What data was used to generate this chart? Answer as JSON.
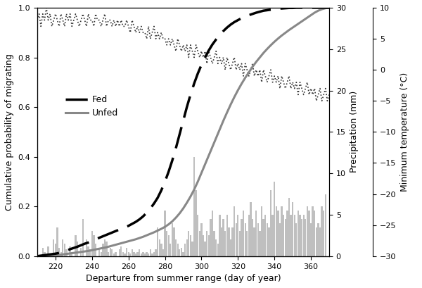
{
  "title": "",
  "xlabel": "Departure from summer range (day of year)",
  "ylabel_left": "Cumulative probability of migrating",
  "ylabel_mid": "Precipitation (mm)",
  "ylabel_right": "Minimum temperature (°C)",
  "xlim": [
    210,
    370
  ],
  "ylim_left": [
    0,
    1.0
  ],
  "ylim_mid": [
    0,
    30
  ],
  "ylim_right": [
    -30,
    10
  ],
  "xticks": [
    220,
    240,
    260,
    280,
    300,
    320,
    340,
    360
  ],
  "yticks_left": [
    0.0,
    0.2,
    0.4,
    0.6,
    0.8,
    1.0
  ],
  "yticks_mid": [
    0,
    5,
    10,
    15,
    20,
    25,
    30
  ],
  "yticks_right": [
    -30,
    -25,
    -20,
    -15,
    -10,
    -5,
    0,
    5,
    10
  ],
  "legend_labels": [
    "Fed",
    "Unfed"
  ],
  "background_color": "#ffffff",
  "fed_color": "#000000",
  "unfed_color": "#888888",
  "precip_color": "#aaaaaa",
  "temp_color": "#444444",
  "fed_x": [
    210,
    215,
    218,
    220,
    222,
    224,
    226,
    228,
    230,
    232,
    234,
    236,
    238,
    240,
    242,
    244,
    246,
    248,
    250,
    252,
    254,
    256,
    258,
    260,
    262,
    264,
    266,
    268,
    270,
    272,
    274,
    276,
    278,
    280,
    282,
    284,
    286,
    288,
    290,
    292,
    294,
    296,
    298,
    300,
    302,
    304,
    306,
    308,
    310,
    312,
    314,
    316,
    318,
    320,
    322,
    324,
    326,
    328,
    330,
    332,
    334,
    336,
    338,
    340,
    342,
    344,
    346,
    348,
    350,
    352,
    354,
    356,
    358,
    360,
    362,
    364,
    366,
    368,
    370
  ],
  "fed_y": [
    0.0,
    0.005,
    0.008,
    0.01,
    0.013,
    0.018,
    0.022,
    0.028,
    0.033,
    0.038,
    0.044,
    0.05,
    0.055,
    0.062,
    0.068,
    0.074,
    0.08,
    0.086,
    0.092,
    0.098,
    0.104,
    0.11,
    0.116,
    0.122,
    0.13,
    0.138,
    0.148,
    0.16,
    0.175,
    0.192,
    0.212,
    0.235,
    0.265,
    0.3,
    0.34,
    0.385,
    0.435,
    0.49,
    0.545,
    0.6,
    0.65,
    0.695,
    0.735,
    0.77,
    0.8,
    0.828,
    0.852,
    0.872,
    0.89,
    0.906,
    0.92,
    0.932,
    0.942,
    0.95,
    0.958,
    0.964,
    0.97,
    0.975,
    0.98,
    0.984,
    0.988,
    0.99,
    0.992,
    0.994,
    0.996,
    0.997,
    0.998,
    0.999,
    0.999,
    1.0,
    1.0,
    1.0,
    1.0,
    1.0,
    1.0,
    1.0,
    1.0,
    1.0,
    1.0
  ],
  "unfed_x": [
    210,
    215,
    218,
    220,
    222,
    224,
    226,
    228,
    230,
    232,
    234,
    236,
    238,
    240,
    242,
    244,
    246,
    248,
    250,
    252,
    254,
    256,
    258,
    260,
    262,
    264,
    266,
    268,
    270,
    272,
    274,
    276,
    278,
    280,
    282,
    284,
    286,
    288,
    290,
    292,
    294,
    296,
    298,
    300,
    302,
    304,
    306,
    308,
    310,
    312,
    314,
    316,
    318,
    320,
    322,
    324,
    326,
    328,
    330,
    332,
    334,
    336,
    338,
    340,
    342,
    344,
    346,
    348,
    350,
    352,
    354,
    356,
    358,
    360,
    362,
    364,
    366,
    368,
    370
  ],
  "unfed_y": [
    0.0,
    0.002,
    0.003,
    0.004,
    0.005,
    0.007,
    0.009,
    0.011,
    0.013,
    0.015,
    0.017,
    0.019,
    0.021,
    0.024,
    0.027,
    0.03,
    0.033,
    0.036,
    0.04,
    0.044,
    0.048,
    0.052,
    0.056,
    0.06,
    0.064,
    0.068,
    0.073,
    0.078,
    0.084,
    0.09,
    0.096,
    0.103,
    0.11,
    0.118,
    0.128,
    0.14,
    0.155,
    0.172,
    0.192,
    0.215,
    0.24,
    0.268,
    0.3,
    0.335,
    0.37,
    0.405,
    0.44,
    0.475,
    0.51,
    0.545,
    0.578,
    0.61,
    0.64,
    0.668,
    0.694,
    0.718,
    0.74,
    0.762,
    0.782,
    0.8,
    0.818,
    0.834,
    0.849,
    0.863,
    0.876,
    0.888,
    0.899,
    0.91,
    0.92,
    0.93,
    0.94,
    0.95,
    0.96,
    0.97,
    0.98,
    0.988,
    0.994,
    0.998,
    1.0
  ],
  "precip_days": [
    213,
    214,
    216,
    217,
    219,
    220,
    221,
    222,
    223,
    224,
    225,
    226,
    228,
    229,
    231,
    232,
    234,
    235,
    237,
    238,
    239,
    240,
    241,
    242,
    244,
    245,
    246,
    247,
    248,
    249,
    250,
    251,
    252,
    253,
    255,
    256,
    257,
    258,
    259,
    260,
    261,
    262,
    263,
    264,
    265,
    266,
    267,
    268,
    269,
    270,
    271,
    272,
    273,
    274,
    275,
    276,
    277,
    278,
    279,
    280,
    281,
    282,
    283,
    284,
    285,
    286,
    287,
    288,
    289,
    290,
    291,
    292,
    293,
    294,
    295,
    296,
    297,
    298,
    299,
    300,
    301,
    302,
    303,
    304,
    305,
    306,
    307,
    308,
    309,
    310,
    311,
    312,
    313,
    314,
    315,
    316,
    317,
    318,
    319,
    320,
    321,
    322,
    323,
    324,
    325,
    326,
    327,
    328,
    329,
    330,
    331,
    332,
    333,
    334,
    335,
    336,
    337,
    338,
    339,
    340,
    341,
    342,
    343,
    344,
    345,
    346,
    347,
    348,
    349,
    350,
    351,
    352,
    353,
    354,
    355,
    356,
    357,
    358,
    359,
    360,
    361,
    362,
    363,
    364,
    365,
    366,
    367,
    368
  ],
  "precip_heights": [
    1.0,
    0.5,
    1.2,
    0.3,
    2.0,
    1.5,
    3.5,
    1.0,
    0.5,
    2.0,
    1.5,
    0.8,
    1.2,
    0.5,
    2.5,
    1.8,
    1.0,
    4.5,
    2.0,
    1.2,
    0.8,
    3.0,
    2.5,
    1.5,
    1.0,
    0.5,
    1.5,
    2.0,
    1.8,
    0.5,
    1.0,
    0.8,
    0.3,
    0.5,
    0.8,
    1.2,
    0.5,
    0.3,
    1.0,
    0.5,
    0.3,
    0.8,
    0.5,
    0.3,
    0.5,
    0.8,
    0.3,
    0.5,
    0.3,
    0.5,
    0.3,
    0.8,
    0.3,
    0.5,
    0.8,
    3.5,
    2.0,
    1.5,
    0.8,
    5.5,
    3.0,
    2.5,
    1.5,
    4.0,
    3.5,
    2.0,
    1.5,
    0.8,
    1.0,
    0.5,
    1.5,
    2.0,
    3.0,
    2.5,
    1.8,
    12.0,
    8.0,
    5.0,
    3.0,
    4.0,
    2.5,
    1.8,
    3.0,
    2.5,
    4.5,
    5.5,
    3.0,
    2.0,
    1.5,
    5.0,
    3.5,
    4.5,
    3.0,
    5.0,
    3.5,
    2.0,
    3.5,
    6.0,
    4.0,
    5.0,
    3.0,
    4.5,
    5.5,
    4.0,
    3.0,
    5.0,
    6.5,
    4.5,
    3.5,
    5.5,
    4.0,
    3.0,
    6.0,
    4.5,
    5.0,
    4.0,
    3.5,
    8.0,
    5.0,
    9.0,
    6.0,
    5.5,
    4.0,
    6.0,
    5.0,
    4.5,
    5.5,
    7.0,
    5.0,
    6.5,
    5.0,
    4.0,
    5.5,
    5.0,
    4.5,
    5.0,
    4.5,
    6.0,
    5.5,
    4.0,
    6.0,
    5.5,
    3.5,
    4.0,
    3.5,
    6.0,
    5.5,
    7.5
  ],
  "temp_days": [
    210,
    211,
    212,
    213,
    214,
    215,
    216,
    217,
    218,
    219,
    220,
    221,
    222,
    223,
    224,
    225,
    226,
    227,
    228,
    229,
    230,
    231,
    232,
    233,
    234,
    235,
    236,
    237,
    238,
    239,
    240,
    241,
    242,
    243,
    244,
    245,
    246,
    247,
    248,
    249,
    250,
    251,
    252,
    253,
    254,
    255,
    256,
    257,
    258,
    259,
    260,
    261,
    262,
    263,
    264,
    265,
    266,
    267,
    268,
    269,
    270,
    271,
    272,
    273,
    274,
    275,
    276,
    277,
    278,
    279,
    280,
    281,
    282,
    283,
    284,
    285,
    286,
    287,
    288,
    289,
    290,
    291,
    292,
    293,
    294,
    295,
    296,
    297,
    298,
    299,
    300,
    301,
    302,
    303,
    304,
    305,
    306,
    307,
    308,
    309,
    310,
    311,
    312,
    313,
    314,
    315,
    316,
    317,
    318,
    319,
    320,
    321,
    322,
    323,
    324,
    325,
    326,
    327,
    328,
    329,
    330,
    331,
    332,
    333,
    334,
    335,
    336,
    337,
    338,
    339,
    340,
    341,
    342,
    343,
    344,
    345,
    346,
    347,
    348,
    349,
    350,
    351,
    352,
    353,
    354,
    355,
    356,
    357,
    358,
    359,
    360,
    361,
    362,
    363,
    364,
    365,
    366,
    367,
    368,
    369,
    370
  ],
  "temp_vals": [
    8,
    9,
    7,
    9,
    8,
    10,
    8,
    9,
    7,
    8,
    9,
    8,
    7,
    9,
    8,
    7,
    9,
    8,
    9,
    7,
    8,
    9,
    8,
    7,
    8,
    9,
    8,
    7,
    9,
    8,
    8,
    7,
    9,
    8,
    8,
    7,
    8,
    9,
    7,
    8,
    8,
    7,
    8,
    7,
    8,
    7,
    8,
    7,
    7,
    8,
    7,
    6,
    8,
    7,
    6,
    7,
    6,
    7,
    6,
    6,
    5,
    7,
    5,
    6,
    7,
    5,
    6,
    5,
    6,
    5,
    5,
    4,
    5,
    4,
    5,
    4,
    3,
    5,
    4,
    3,
    4,
    3,
    4,
    2,
    4,
    3,
    2,
    4,
    3,
    2,
    3,
    2,
    3,
    1,
    3,
    2,
    1,
    2,
    3,
    1,
    2,
    1,
    2,
    0,
    2,
    1,
    0,
    1,
    2,
    0,
    1,
    0,
    1,
    -1,
    1,
    0,
    -1,
    0,
    1,
    -1,
    0,
    -1,
    0,
    -2,
    0,
    -1,
    -2,
    -1,
    0,
    -2,
    -1,
    -2,
    -1,
    -3,
    -1,
    -2,
    -3,
    -2,
    -1,
    -3,
    -2,
    -3,
    -2,
    -4,
    -2,
    -3,
    -4,
    -3,
    -2,
    -4,
    -3,
    -4,
    -3,
    -5,
    -4,
    -3,
    -5,
    -4,
    -3,
    -5,
    -4
  ]
}
